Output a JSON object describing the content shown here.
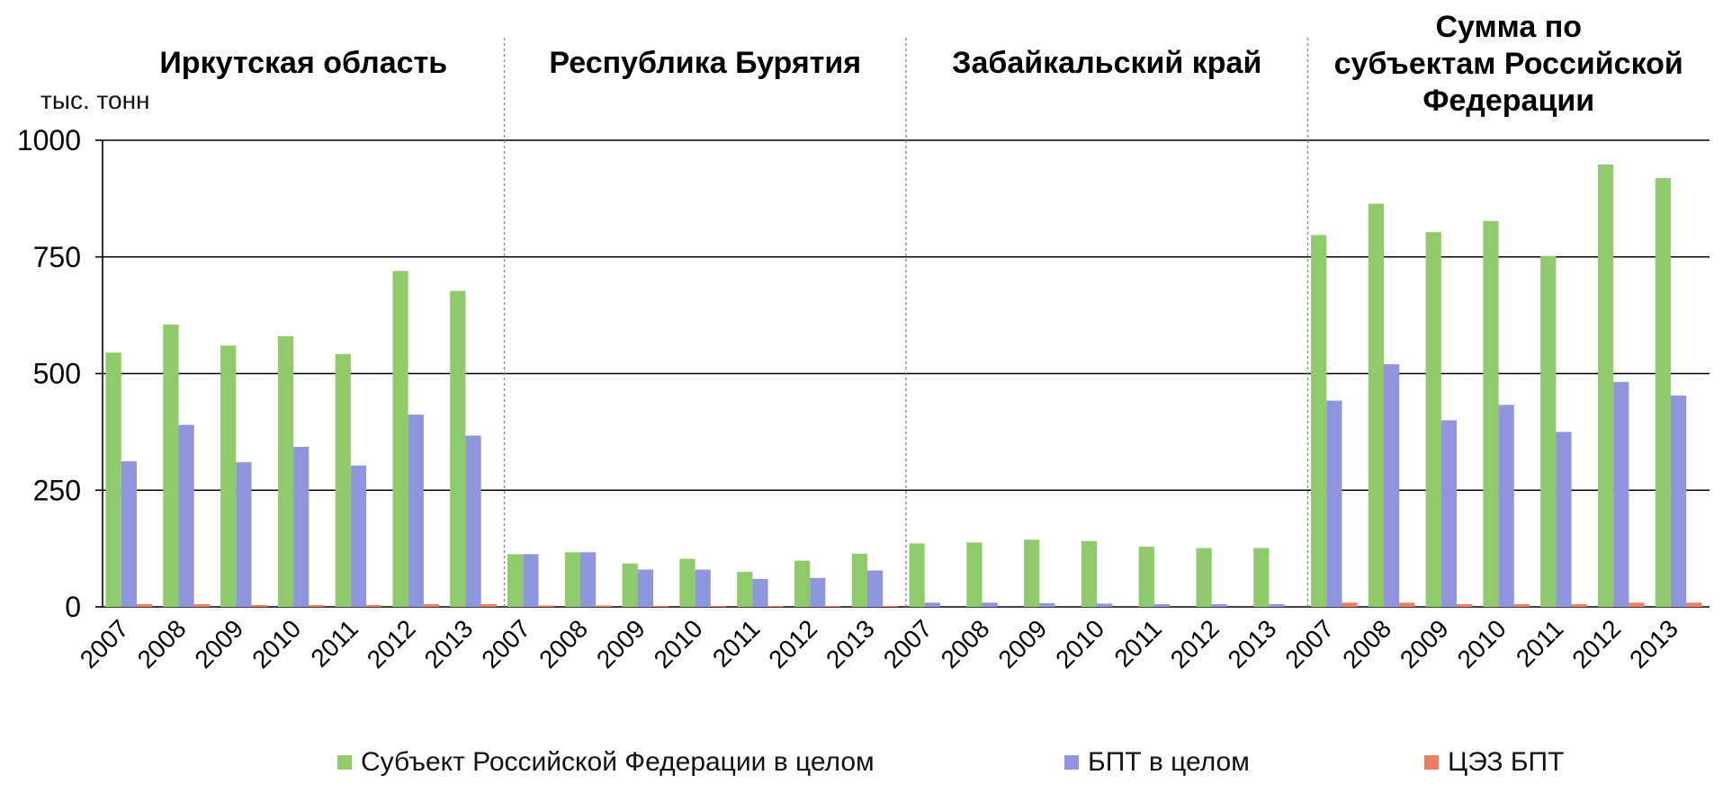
{
  "chart_data": {
    "type": "bar",
    "ylabel": "тыс. тонн",
    "ylim": [
      0,
      1000
    ],
    "yticks": [
      0,
      250,
      500,
      750,
      1000
    ],
    "grid": true,
    "legend_position": "bottom",
    "years": [
      "2007",
      "2008",
      "2009",
      "2010",
      "2011",
      "2012",
      "2013"
    ],
    "series_meta": [
      {
        "name": "Субъект Российской Федерации в целом",
        "color": "#8fcb6b"
      },
      {
        "name": "БПТ в целом",
        "color": "#8f96dd"
      },
      {
        "name": "ЦЭЗ БПТ",
        "color": "#ef7d5e"
      }
    ],
    "groups": [
      {
        "title_lines": [
          "Иркутская область"
        ],
        "series": [
          {
            "name": "Субъект Российской Федерации в целом",
            "values": [
              545,
              605,
              560,
              580,
              542,
              720,
              677
            ]
          },
          {
            "name": "БПТ в целом",
            "values": [
              312,
              390,
              310,
              343,
              303,
              412,
              367
            ]
          },
          {
            "name": "ЦЭЗ БПТ",
            "values": [
              6,
              6,
              4,
              4,
              4,
              6,
              6
            ]
          }
        ]
      },
      {
        "title_lines": [
          "Республика Бурятия"
        ],
        "series": [
          {
            "name": "Субъект Российской Федерации в целом",
            "values": [
              113,
              117,
              93,
              103,
              75,
              99,
              114
            ]
          },
          {
            "name": "БПТ в целом",
            "values": [
              113,
              117,
              80,
              80,
              60,
              62,
              78
            ]
          },
          {
            "name": "ЦЭЗ БПТ",
            "values": [
              3,
              3,
              2,
              2,
              2,
              2,
              2
            ]
          }
        ]
      },
      {
        "title_lines": [
          "Забайкальский край"
        ],
        "series": [
          {
            "name": "Субъект Российской Федерации в целом",
            "values": [
              136,
              138,
              144,
              141,
              129,
              126,
              126
            ]
          },
          {
            "name": "БПТ в целом",
            "values": [
              9,
              9,
              8,
              7,
              6,
              6,
              6
            ]
          },
          {
            "name": "ЦЭЗ БПТ",
            "values": [
              0,
              0,
              0,
              0,
              0,
              0,
              0
            ]
          }
        ]
      },
      {
        "title_lines": [
          "Сумма по",
          "субъектам Российской",
          "Федерации"
        ],
        "series": [
          {
            "name": "Субъект Российской Федерации в целом",
            "values": [
              797,
              864,
              803,
              827,
              752,
              948,
              919
            ]
          },
          {
            "name": "БПТ в целом",
            "values": [
              442,
              520,
              400,
              433,
              375,
              482,
              453
            ]
          },
          {
            "name": "ЦЭЗ БПТ",
            "values": [
              9,
              9,
              6,
              6,
              6,
              9,
              9
            ]
          }
        ]
      }
    ]
  },
  "legend": {
    "item1": "Субъект Российской Федерации в целом",
    "item2": "БПТ в целом",
    "item3": "ЦЭЗ БПТ"
  }
}
